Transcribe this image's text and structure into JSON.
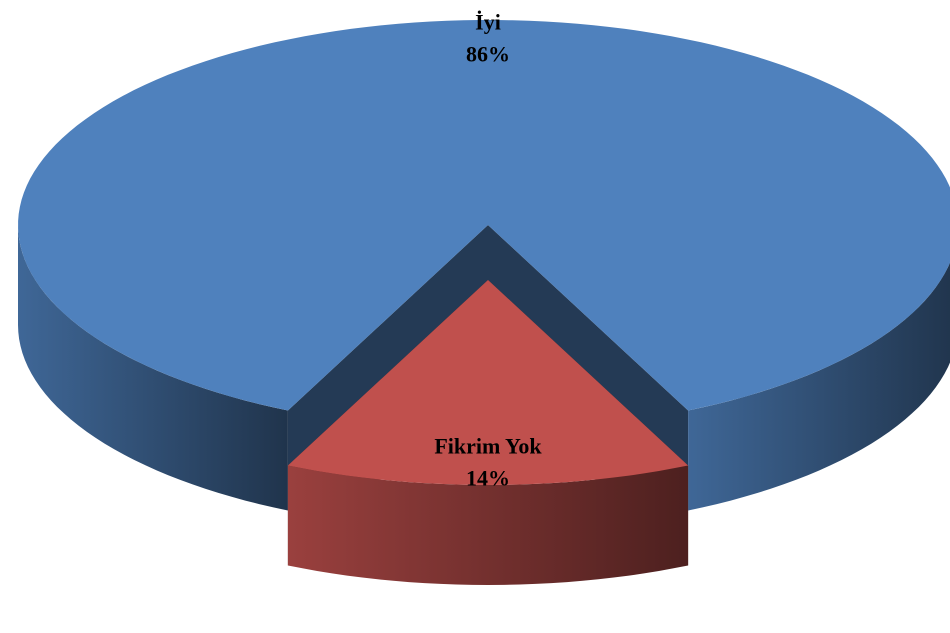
{
  "chart_data": {
    "type": "pie3d",
    "categories": [
      "İyi",
      "Fikrim Yok"
    ],
    "values": [
      86,
      14
    ],
    "value_labels": [
      "86%",
      "14%"
    ],
    "colors": [
      "#4f81bd",
      "#c0504d"
    ]
  }
}
